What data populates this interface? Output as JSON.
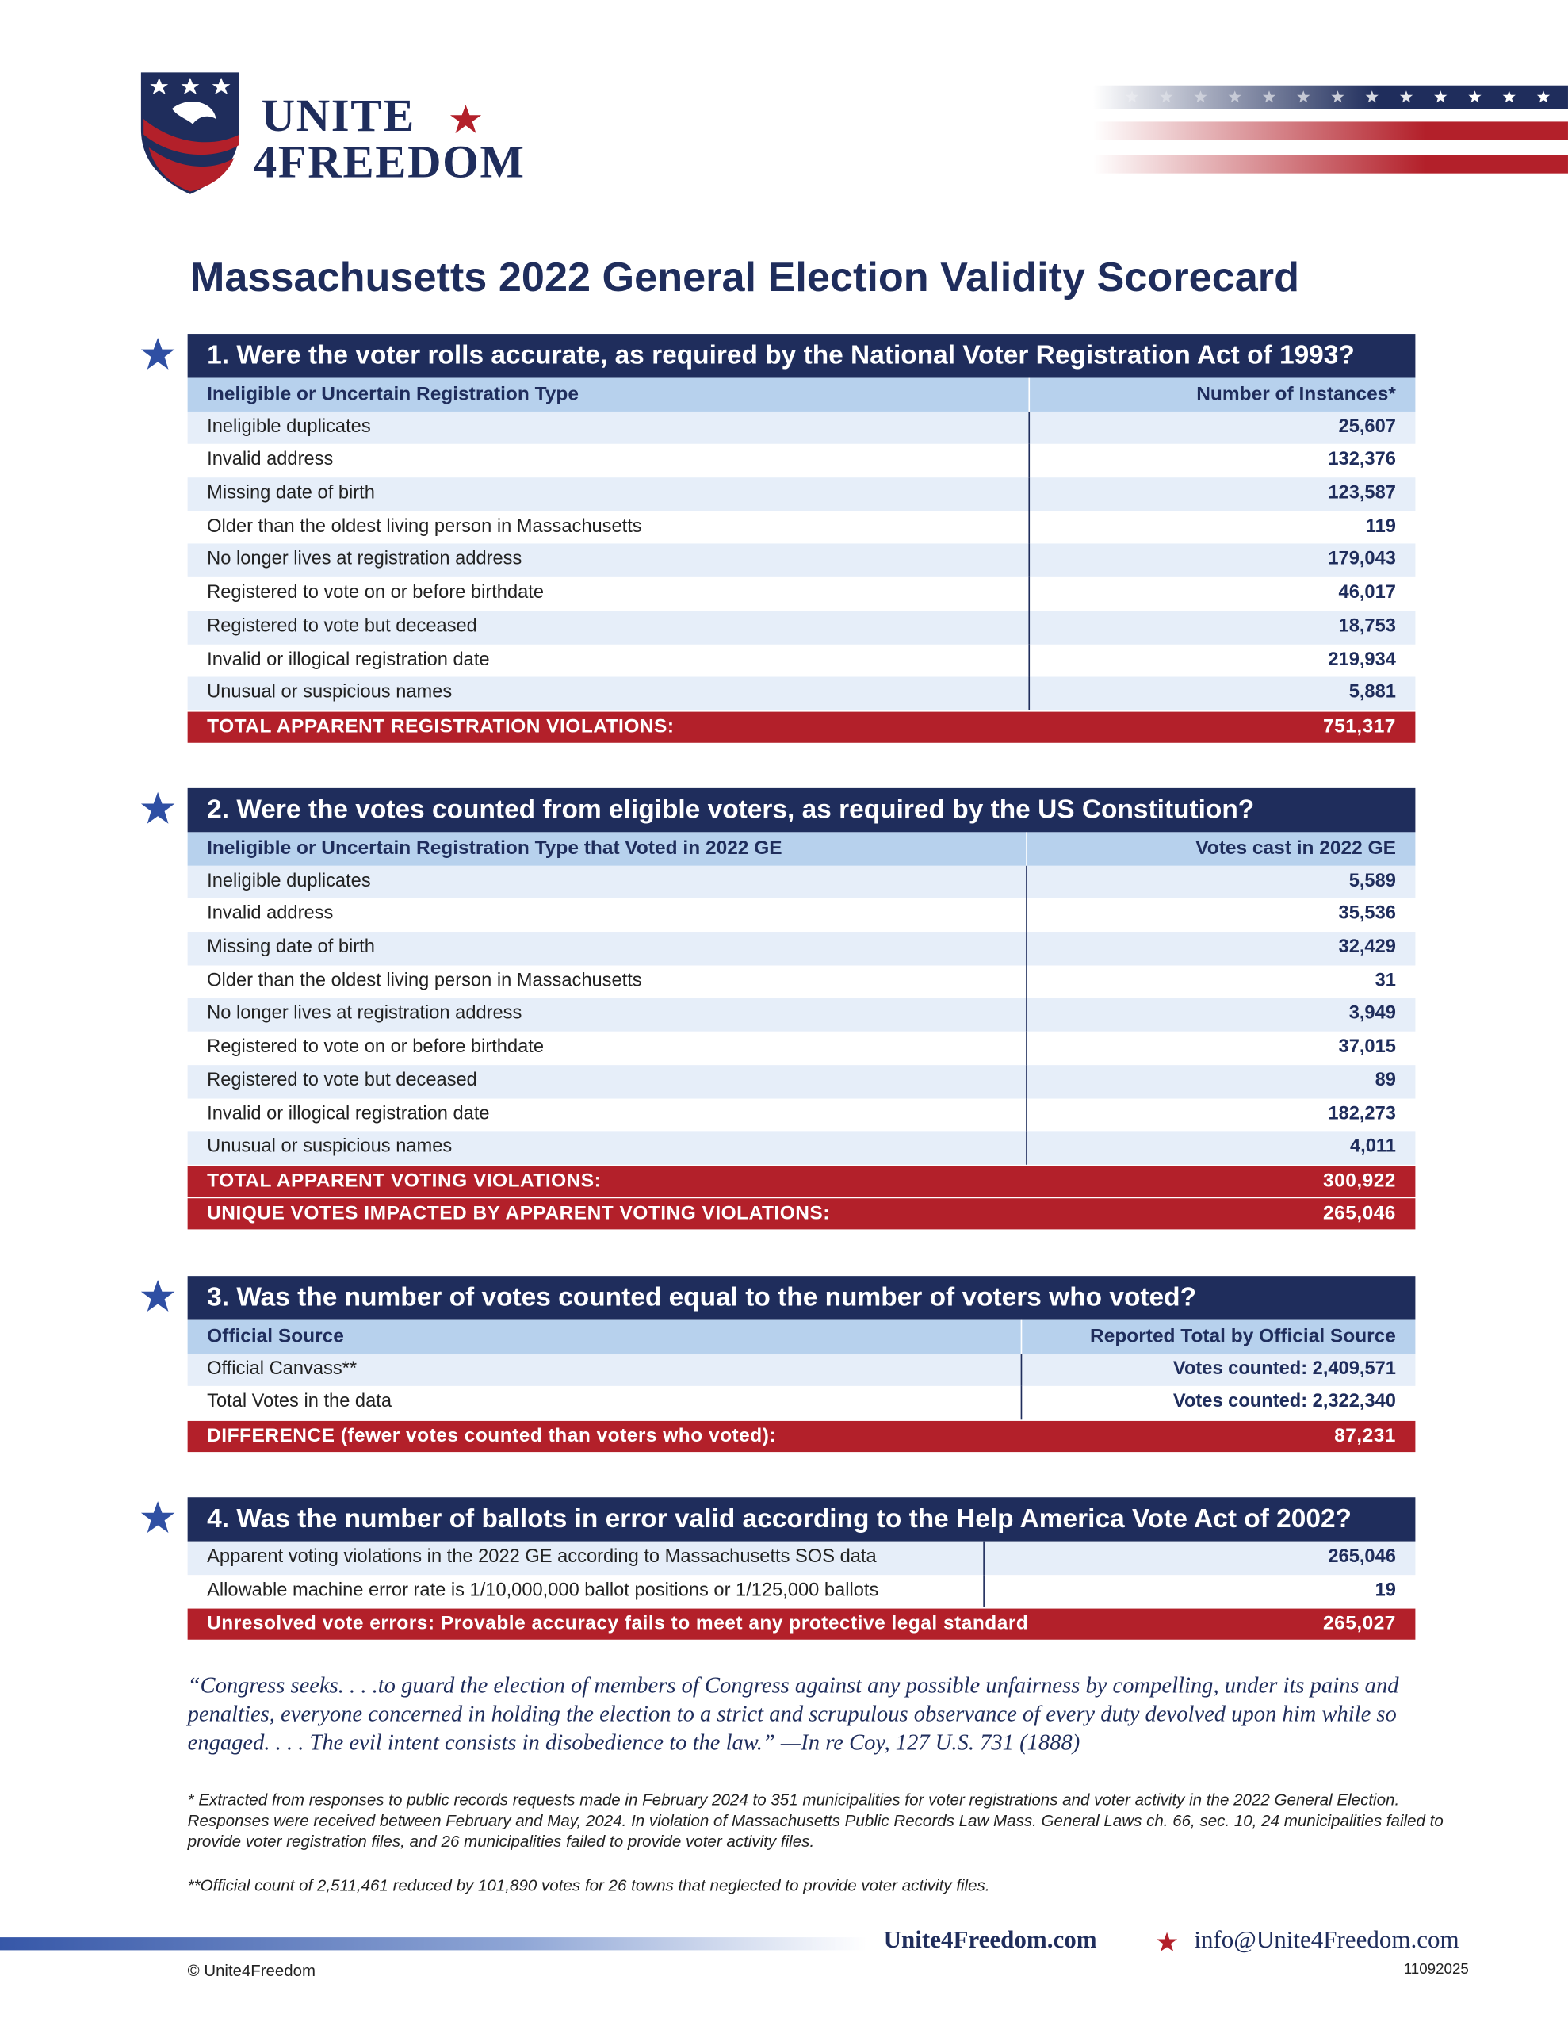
{
  "header": {
    "logo_line1": "UNITE",
    "logo_line2": "4FREEDOM"
  },
  "title": "Massachusetts 2022 General Election Validity Scorecard",
  "sections": [
    {
      "heading": "1. Were the voter rolls accurate, as required by the National Voter Registration Act of 1993?",
      "columns": [
        "Ineligible or Uncertain Registration Type",
        "Number of Instances*"
      ],
      "rows": [
        [
          "Ineligible duplicates",
          "25,607"
        ],
        [
          "Invalid address",
          "132,376"
        ],
        [
          "Missing date of birth",
          "123,587"
        ],
        [
          "Older than the oldest living person in Massachusetts",
          "119"
        ],
        [
          "No longer lives at registration address",
          "179,043"
        ],
        [
          "Registered to vote on or before birthdate",
          "46,017"
        ],
        [
          "Registered to vote but deceased",
          "18,753"
        ],
        [
          "Invalid or illogical registration date",
          "219,934"
        ],
        [
          "Unusual or suspicious names",
          "5,881"
        ]
      ],
      "totals": [
        [
          "TOTAL APPARENT REGISTRATION VIOLATIONS:",
          "751,317"
        ]
      ]
    },
    {
      "heading": "2. Were the votes counted from eligible voters, as required by the US Constitution?",
      "columns": [
        "Ineligible or Uncertain Registration Type that Voted in 2022 GE",
        "Votes cast in 2022 GE"
      ],
      "rows": [
        [
          "Ineligible duplicates",
          "5,589"
        ],
        [
          "Invalid address",
          "35,536"
        ],
        [
          "Missing date of birth",
          "32,429"
        ],
        [
          "Older than the oldest living person in Massachusetts",
          "31"
        ],
        [
          "No longer lives at registration address",
          "3,949"
        ],
        [
          "Registered to vote on or before birthdate",
          "37,015"
        ],
        [
          "Registered to vote but deceased",
          "89"
        ],
        [
          "Invalid or illogical registration date",
          "182,273"
        ],
        [
          "Unusual or suspicious names",
          "4,011"
        ]
      ],
      "totals": [
        [
          "TOTAL APPARENT VOTING VIOLATIONS:",
          "300,922"
        ],
        [
          "UNIQUE VOTES IMPACTED BY APPARENT VOTING VIOLATIONS:",
          "265,046"
        ]
      ]
    },
    {
      "heading": "3. Was the number of votes counted equal to the number of voters who voted?",
      "columns": [
        "Official Source",
        "Reported Total by Official Source"
      ],
      "rows": [
        [
          "Official Canvass**",
          "Votes counted: 2,409,571"
        ],
        [
          "Total Votes in the data",
          "Votes counted: 2,322,340"
        ]
      ],
      "totals": [
        [
          "DIFFERENCE (fewer votes counted than voters who voted):",
          "87,231"
        ]
      ]
    },
    {
      "heading": "4. Was the number of ballots in error valid according to the Help America Vote Act of 2002?",
      "rows": [
        [
          "Apparent voting violations in the 2022 GE according to Massachusetts SOS data",
          "265,046"
        ],
        [
          "Allowable machine error rate is 1/10,000,000 ballot positions or 1/125,000 ballots",
          "19"
        ]
      ],
      "totals": [
        [
          "Unresolved vote errors: Provable accuracy fails to meet any protective legal standard",
          "265,027"
        ]
      ]
    }
  ],
  "quote": "“Congress seeks. . . .to guard the election of members of Congress against any possible unfairness by compelling, under its pains and penalties, everyone concerned in holding the election to a strict and scrupulous observance of every duty devolved upon him while so engaged. . . . The evil intent consists in disobedience to the law.”  —In re Coy, 127 U.S. 731 (1888)",
  "footnotes": [
    "* Extracted from responses to public records requests made in February 2024 to 351 municipalities for voter registrations and voter activity in the 2022 General Election. Responses were received between February and May, 2024. In violation of Massachusetts Public Records Law Mass. General Laws ch. 66, sec. 10, 24 municipalities failed to provide voter registration files, and 26 municipalities failed to provide voter activity files.",
    "**Official count of 2,511,461 reduced by 101,890 votes for 26 towns that neglected to provide voter activity files."
  ],
  "footer": {
    "website": "Unite4Freedom.com",
    "email": "info@Unite4Freedom.com",
    "copyright": "© Unite4Freedom",
    "code": "11092025"
  }
}
